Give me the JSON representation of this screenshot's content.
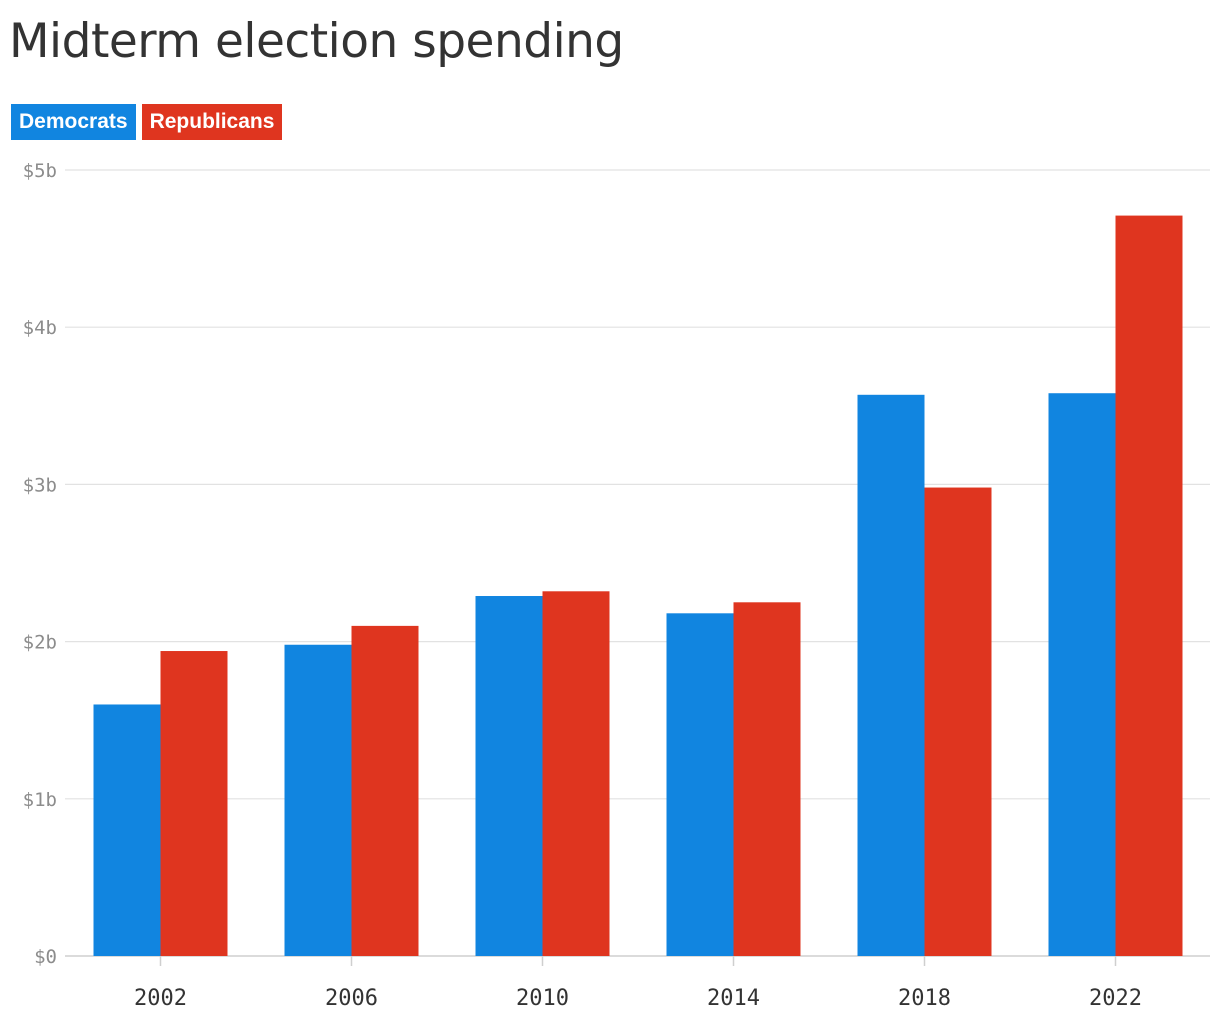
{
  "title": "Midterm election spending",
  "legend": [
    {
      "label": "Democrats",
      "color": "#1185e0"
    },
    {
      "label": "Republicans",
      "color": "#df351f"
    }
  ],
  "chart_data": {
    "type": "bar",
    "title": "Midterm election spending",
    "xlabel": "",
    "ylabel": "",
    "categories": [
      "2002",
      "2006",
      "2010",
      "2014",
      "2018",
      "2022"
    ],
    "series": [
      {
        "name": "Democrats",
        "color": "#1185e0",
        "values": [
          1.6,
          1.98,
          2.29,
          2.18,
          3.57,
          3.58
        ]
      },
      {
        "name": "Republicans",
        "color": "#df351f",
        "values": [
          1.94,
          2.1,
          2.32,
          2.25,
          2.98,
          4.71
        ]
      }
    ],
    "ylim": [
      0,
      5
    ],
    "yticks": [
      0,
      1,
      2,
      3,
      4,
      5
    ],
    "ytick_labels": [
      "$0",
      "$1b",
      "$2b",
      "$3b",
      "$4b",
      "$5b"
    ],
    "grid": true,
    "legend_position": "top-left"
  }
}
